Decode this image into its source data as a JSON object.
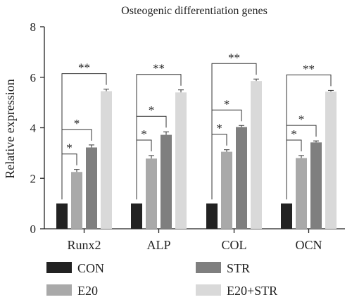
{
  "chart_data": {
    "type": "bar",
    "title": "Osteogenic differentiation genes",
    "xlabel": "",
    "ylabel": "Relative expression",
    "ylim": [
      0,
      8
    ],
    "yticks": [
      0,
      2,
      4,
      6,
      8
    ],
    "categories": [
      "Runx2",
      "ALP",
      "COL",
      "OCN"
    ],
    "series": [
      {
        "name": "CON",
        "color": "#222222",
        "values": [
          1.0,
          1.0,
          1.0,
          1.0
        ],
        "errors": [
          0,
          0,
          0,
          0
        ]
      },
      {
        "name": "E20",
        "color": "#a9a9a9",
        "values": [
          2.25,
          2.78,
          3.05,
          2.8
        ],
        "errors": [
          0.1,
          0.12,
          0.08,
          0.1
        ]
      },
      {
        "name": "STR",
        "color": "#7f7f7f",
        "values": [
          3.22,
          3.72,
          4.03,
          3.42
        ],
        "errors": [
          0.1,
          0.12,
          0.06,
          0.06
        ]
      },
      {
        "name": "E20+STR",
        "color": "#d9d9d9",
        "values": [
          5.45,
          5.4,
          5.85,
          5.43
        ],
        "errors": [
          0.08,
          0.1,
          0.08,
          0.05
        ]
      }
    ],
    "annotations": [
      {
        "category": "Runx2",
        "from": "CON",
        "to": "E20",
        "label": "*"
      },
      {
        "category": "Runx2",
        "from": "CON",
        "to": "STR",
        "label": "*"
      },
      {
        "category": "Runx2",
        "from": "CON",
        "to": "E20+STR",
        "label": "**"
      },
      {
        "category": "ALP",
        "from": "CON",
        "to": "E20",
        "label": "*"
      },
      {
        "category": "ALP",
        "from": "CON",
        "to": "STR",
        "label": "*"
      },
      {
        "category": "ALP",
        "from": "CON",
        "to": "E20+STR",
        "label": "**"
      },
      {
        "category": "COL",
        "from": "CON",
        "to": "E20",
        "label": "*"
      },
      {
        "category": "COL",
        "from": "CON",
        "to": "STR",
        "label": "*"
      },
      {
        "category": "COL",
        "from": "CON",
        "to": "E20+STR",
        "label": "**"
      },
      {
        "category": "OCN",
        "from": "CON",
        "to": "E20",
        "label": "*"
      },
      {
        "category": "OCN",
        "from": "CON",
        "to": "STR",
        "label": "*"
      },
      {
        "category": "OCN",
        "from": "CON",
        "to": "E20+STR",
        "label": "**"
      }
    ],
    "legend_position": "bottom",
    "grid": false
  }
}
